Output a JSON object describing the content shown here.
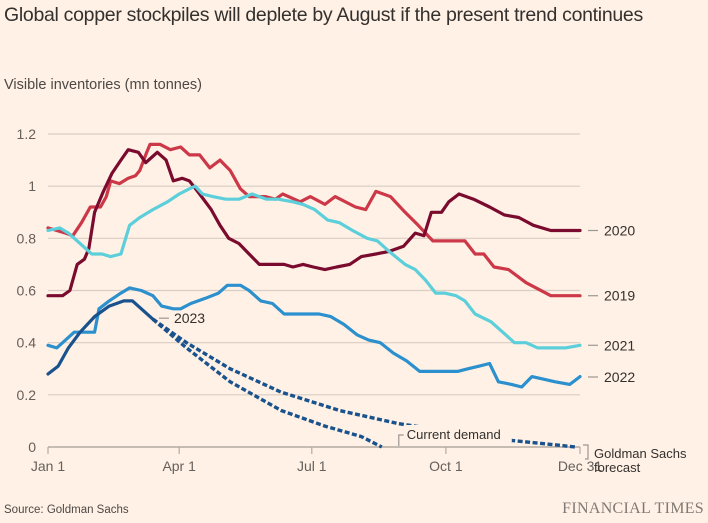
{
  "header": {
    "title": "Global copper stockpiles will deplete by August if the present trend continues",
    "subtitle": "Visible inventories (mn tonnes)"
  },
  "footer": {
    "source": "Source: Goldman Sachs",
    "brand": "FINANCIAL TIMES"
  },
  "chart_data": {
    "type": "line",
    "title": "Global copper stockpiles will deplete by August if the present trend continues",
    "ylabel": "Visible inventories (mn tonnes)",
    "xlabel": "",
    "x_unit": "day of year",
    "xlim": [
      0,
      365
    ],
    "ylim": [
      0,
      1.2
    ],
    "grid": true,
    "yticks": [
      {
        "value": 0,
        "label": "0"
      },
      {
        "value": 0.2,
        "label": "0.2"
      },
      {
        "value": 0.4,
        "label": "0.4"
      },
      {
        "value": 0.6,
        "label": "0.6"
      },
      {
        "value": 0.8,
        "label": "0.8"
      },
      {
        "value": 1.0,
        "label": "1"
      },
      {
        "value": 1.2,
        "label": "1.2"
      }
    ],
    "xticks": [
      {
        "value": 0,
        "label": "Jan 1"
      },
      {
        "value": 90,
        "label": "Apr 1"
      },
      {
        "value": 181,
        "label": "Jul 1"
      },
      {
        "value": 273,
        "label": "Oct 1"
      },
      {
        "value": 365,
        "label": "Dec 31"
      }
    ],
    "legend": "direct labels at right end of lines",
    "series": [
      {
        "name": "2019",
        "label": "2019",
        "color": "#cc3847",
        "style": "solid",
        "points": [
          [
            0,
            0.84
          ],
          [
            12,
            0.82
          ],
          [
            17,
            0.81
          ],
          [
            23,
            0.86
          ],
          [
            29,
            0.92
          ],
          [
            36,
            0.92
          ],
          [
            40,
            0.96
          ],
          [
            43,
            1.02
          ],
          [
            49,
            1.01
          ],
          [
            55,
            1.03
          ],
          [
            60,
            1.04
          ],
          [
            63,
            1.06
          ],
          [
            67,
            1.12
          ],
          [
            70,
            1.16
          ],
          [
            77,
            1.16
          ],
          [
            84,
            1.14
          ],
          [
            91,
            1.15
          ],
          [
            97,
            1.12
          ],
          [
            104,
            1.12
          ],
          [
            111,
            1.07
          ],
          [
            118,
            1.1
          ],
          [
            125,
            1.06
          ],
          [
            132,
            0.99
          ],
          [
            138,
            0.96
          ],
          [
            149,
            0.96
          ],
          [
            156,
            0.95
          ],
          [
            161,
            0.97
          ],
          [
            173,
            0.94
          ],
          [
            180,
            0.96
          ],
          [
            190,
            0.93
          ],
          [
            197,
            0.96
          ],
          [
            211,
            0.92
          ],
          [
            218,
            0.91
          ],
          [
            225,
            0.98
          ],
          [
            235,
            0.96
          ],
          [
            245,
            0.9
          ],
          [
            254,
            0.85
          ],
          [
            264,
            0.79
          ],
          [
            276,
            0.79
          ],
          [
            286,
            0.79
          ],
          [
            293,
            0.74
          ],
          [
            299,
            0.74
          ],
          [
            306,
            0.69
          ],
          [
            316,
            0.68
          ],
          [
            328,
            0.63
          ],
          [
            345,
            0.58
          ],
          [
            365,
            0.58
          ]
        ]
      },
      {
        "name": "2020",
        "label": "2020",
        "color": "#7a0b2e",
        "style": "solid",
        "points": [
          [
            0,
            0.58
          ],
          [
            10,
            0.58
          ],
          [
            15,
            0.6
          ],
          [
            20,
            0.7
          ],
          [
            25,
            0.72
          ],
          [
            28,
            0.76
          ],
          [
            32,
            0.9
          ],
          [
            38,
            0.98
          ],
          [
            44,
            1.05
          ],
          [
            50,
            1.1
          ],
          [
            55,
            1.14
          ],
          [
            62,
            1.13
          ],
          [
            67,
            1.09
          ],
          [
            71,
            1.11
          ],
          [
            75,
            1.13
          ],
          [
            81,
            1.1
          ],
          [
            86,
            1.02
          ],
          [
            92,
            1.03
          ],
          [
            97,
            1.02
          ],
          [
            104,
            0.97
          ],
          [
            112,
            0.91
          ],
          [
            118,
            0.85
          ],
          [
            124,
            0.8
          ],
          [
            131,
            0.78
          ],
          [
            138,
            0.74
          ],
          [
            145,
            0.7
          ],
          [
            153,
            0.7
          ],
          [
            162,
            0.7
          ],
          [
            168,
            0.69
          ],
          [
            175,
            0.7
          ],
          [
            182,
            0.69
          ],
          [
            190,
            0.68
          ],
          [
            198,
            0.69
          ],
          [
            207,
            0.7
          ],
          [
            215,
            0.73
          ],
          [
            225,
            0.74
          ],
          [
            234,
            0.75
          ],
          [
            244,
            0.77
          ],
          [
            252,
            0.82
          ],
          [
            258,
            0.81
          ],
          [
            263,
            0.9
          ],
          [
            270,
            0.9
          ],
          [
            275,
            0.94
          ],
          [
            282,
            0.97
          ],
          [
            292,
            0.95
          ],
          [
            303,
            0.92
          ],
          [
            313,
            0.89
          ],
          [
            323,
            0.88
          ],
          [
            333,
            0.85
          ],
          [
            345,
            0.83
          ],
          [
            365,
            0.83
          ]
        ]
      },
      {
        "name": "2021",
        "label": "2021",
        "color": "#5ccfdb",
        "style": "solid",
        "points": [
          [
            0,
            0.83
          ],
          [
            8,
            0.84
          ],
          [
            14,
            0.82
          ],
          [
            22,
            0.78
          ],
          [
            30,
            0.74
          ],
          [
            37,
            0.74
          ],
          [
            43,
            0.73
          ],
          [
            50,
            0.74
          ],
          [
            56,
            0.85
          ],
          [
            63,
            0.88
          ],
          [
            72,
            0.91
          ],
          [
            82,
            0.94
          ],
          [
            90,
            0.97
          ],
          [
            97,
            0.99
          ],
          [
            101,
            1.0
          ],
          [
            106,
            0.97
          ],
          [
            113,
            0.96
          ],
          [
            122,
            0.95
          ],
          [
            131,
            0.95
          ],
          [
            140,
            0.97
          ],
          [
            150,
            0.95
          ],
          [
            158,
            0.95
          ],
          [
            168,
            0.94
          ],
          [
            175,
            0.93
          ],
          [
            183,
            0.91
          ],
          [
            192,
            0.87
          ],
          [
            200,
            0.86
          ],
          [
            209,
            0.83
          ],
          [
            219,
            0.8
          ],
          [
            226,
            0.79
          ],
          [
            234,
            0.75
          ],
          [
            245,
            0.7
          ],
          [
            252,
            0.68
          ],
          [
            259,
            0.64
          ],
          [
            266,
            0.59
          ],
          [
            272,
            0.59
          ],
          [
            280,
            0.58
          ],
          [
            286,
            0.56
          ],
          [
            293,
            0.51
          ],
          [
            304,
            0.48
          ],
          [
            314,
            0.43
          ],
          [
            320,
            0.4
          ],
          [
            328,
            0.4
          ],
          [
            336,
            0.38
          ],
          [
            345,
            0.38
          ],
          [
            355,
            0.38
          ],
          [
            365,
            0.39
          ]
        ]
      },
      {
        "name": "2022",
        "label": "2022",
        "color": "#2b90cd",
        "style": "solid",
        "points": [
          [
            0,
            0.39
          ],
          [
            6,
            0.38
          ],
          [
            12,
            0.41
          ],
          [
            18,
            0.44
          ],
          [
            28,
            0.44
          ],
          [
            32,
            0.44
          ],
          [
            35,
            0.53
          ],
          [
            42,
            0.56
          ],
          [
            50,
            0.59
          ],
          [
            56,
            0.61
          ],
          [
            64,
            0.6
          ],
          [
            72,
            0.58
          ],
          [
            78,
            0.54
          ],
          [
            86,
            0.53
          ],
          [
            91,
            0.53
          ],
          [
            98,
            0.55
          ],
          [
            108,
            0.57
          ],
          [
            117,
            0.59
          ],
          [
            123,
            0.62
          ],
          [
            132,
            0.62
          ],
          [
            138,
            0.6
          ],
          [
            146,
            0.56
          ],
          [
            154,
            0.55
          ],
          [
            162,
            0.51
          ],
          [
            170,
            0.51
          ],
          [
            178,
            0.51
          ],
          [
            186,
            0.51
          ],
          [
            194,
            0.5
          ],
          [
            203,
            0.47
          ],
          [
            212,
            0.43
          ],
          [
            220,
            0.41
          ],
          [
            228,
            0.4
          ],
          [
            237,
            0.36
          ],
          [
            246,
            0.33
          ],
          [
            255,
            0.29
          ],
          [
            264,
            0.29
          ],
          [
            272,
            0.29
          ],
          [
            281,
            0.29
          ],
          [
            288,
            0.3
          ],
          [
            296,
            0.31
          ],
          [
            303,
            0.32
          ],
          [
            309,
            0.25
          ],
          [
            318,
            0.24
          ],
          [
            325,
            0.23
          ],
          [
            332,
            0.27
          ],
          [
            340,
            0.26
          ],
          [
            348,
            0.25
          ],
          [
            358,
            0.24
          ],
          [
            365,
            0.27
          ]
        ]
      },
      {
        "name": "2023",
        "label": "2023",
        "color": "#19528c",
        "style": "solid",
        "points": [
          [
            0,
            0.28
          ],
          [
            7,
            0.31
          ],
          [
            14,
            0.38
          ],
          [
            22,
            0.44
          ],
          [
            32,
            0.5
          ],
          [
            42,
            0.54
          ],
          [
            52,
            0.56
          ],
          [
            58,
            0.56
          ],
          [
            64,
            0.53
          ],
          [
            72,
            0.49
          ]
        ]
      },
      {
        "name": "Goldman Sachs forecast",
        "label": "Goldman Sachs forecast",
        "color": "#19528c",
        "style": "dashed",
        "points": [
          [
            72,
            0.49
          ],
          [
            95,
            0.4
          ],
          [
            125,
            0.3
          ],
          [
            160,
            0.21
          ],
          [
            200,
            0.14
          ],
          [
            240,
            0.09
          ],
          [
            275,
            0.06
          ],
          [
            310,
            0.03
          ],
          [
            345,
            0.01
          ],
          [
            362,
            0.0
          ]
        ]
      },
      {
        "name": "Current demand",
        "label": "Current demand",
        "color": "#19528c",
        "style": "dashed",
        "points": [
          [
            72,
            0.49
          ],
          [
            95,
            0.38
          ],
          [
            125,
            0.25
          ],
          [
            160,
            0.14
          ],
          [
            190,
            0.08
          ],
          [
            215,
            0.04
          ],
          [
            229,
            0.0
          ]
        ]
      }
    ]
  }
}
